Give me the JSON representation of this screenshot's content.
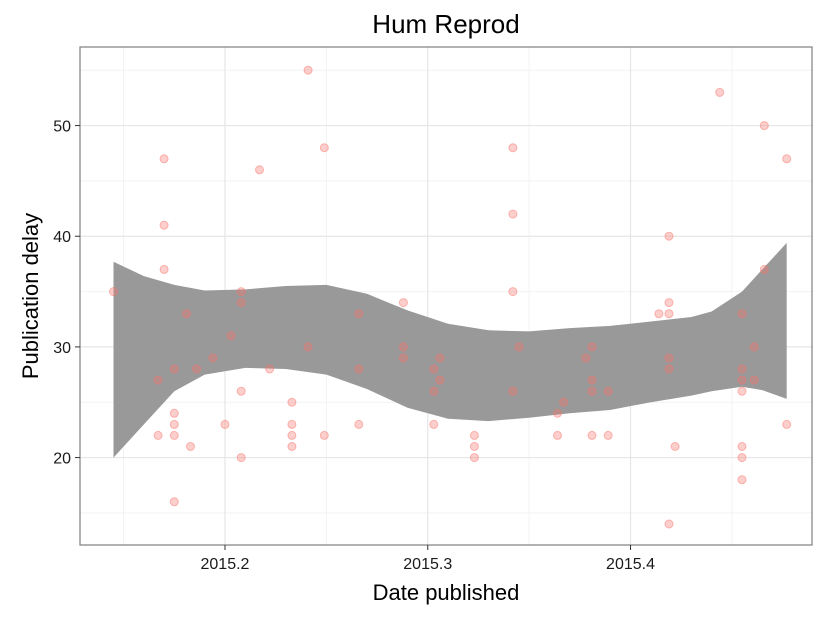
{
  "chart_data": {
    "type": "scatter",
    "title": "Hum Reprod",
    "xlabel": "Date published",
    "ylabel": "Publication delay",
    "xlim": [
      2015.1285,
      2015.4895
    ],
    "ylim": [
      12.1,
      57.1
    ],
    "x_ticks": [
      2015.2,
      2015.3,
      2015.4
    ],
    "x_tick_labels": [
      "2015.2",
      "2015.3",
      "2015.4"
    ],
    "y_ticks": [
      20,
      30,
      40,
      50
    ],
    "y_tick_labels": [
      "20",
      "30",
      "40",
      "50"
    ],
    "grid": true,
    "point_color": "#F8766D",
    "band_color": "#999999",
    "points": [
      [
        2015.145,
        35
      ],
      [
        2015.167,
        27
      ],
      [
        2015.167,
        22
      ],
      [
        2015.17,
        47
      ],
      [
        2015.17,
        41
      ],
      [
        2015.17,
        37
      ],
      [
        2015.175,
        28
      ],
      [
        2015.175,
        24
      ],
      [
        2015.175,
        23
      ],
      [
        2015.175,
        22
      ],
      [
        2015.175,
        16
      ],
      [
        2015.181,
        33
      ],
      [
        2015.183,
        21
      ],
      [
        2015.186,
        28
      ],
      [
        2015.194,
        29
      ],
      [
        2015.2,
        23
      ],
      [
        2015.203,
        31
      ],
      [
        2015.208,
        35
      ],
      [
        2015.208,
        34
      ],
      [
        2015.208,
        26
      ],
      [
        2015.208,
        20
      ],
      [
        2015.217,
        46
      ],
      [
        2015.222,
        28
      ],
      [
        2015.233,
        25
      ],
      [
        2015.233,
        23
      ],
      [
        2015.233,
        22
      ],
      [
        2015.233,
        21
      ],
      [
        2015.241,
        55
      ],
      [
        2015.241,
        30
      ],
      [
        2015.249,
        48
      ],
      [
        2015.249,
        22
      ],
      [
        2015.266,
        33
      ],
      [
        2015.266,
        28
      ],
      [
        2015.266,
        23
      ],
      [
        2015.288,
        34
      ],
      [
        2015.288,
        30
      ],
      [
        2015.288,
        29
      ],
      [
        2015.303,
        28
      ],
      [
        2015.303,
        26
      ],
      [
        2015.303,
        23
      ],
      [
        2015.306,
        29
      ],
      [
        2015.306,
        27
      ],
      [
        2015.323,
        22
      ],
      [
        2015.323,
        21
      ],
      [
        2015.323,
        20
      ],
      [
        2015.342,
        48
      ],
      [
        2015.342,
        42
      ],
      [
        2015.342,
        35
      ],
      [
        2015.342,
        26
      ],
      [
        2015.345,
        30
      ],
      [
        2015.364,
        24
      ],
      [
        2015.364,
        22
      ],
      [
        2015.367,
        25
      ],
      [
        2015.378,
        29
      ],
      [
        2015.381,
        30
      ],
      [
        2015.381,
        27
      ],
      [
        2015.381,
        26
      ],
      [
        2015.381,
        22
      ],
      [
        2015.389,
        26
      ],
      [
        2015.389,
        22
      ],
      [
        2015.414,
        33
      ],
      [
        2015.419,
        40
      ],
      [
        2015.419,
        34
      ],
      [
        2015.419,
        33
      ],
      [
        2015.419,
        29
      ],
      [
        2015.419,
        28
      ],
      [
        2015.419,
        14
      ],
      [
        2015.422,
        21
      ],
      [
        2015.444,
        53
      ],
      [
        2015.455,
        33
      ],
      [
        2015.455,
        28
      ],
      [
        2015.455,
        27
      ],
      [
        2015.455,
        26
      ],
      [
        2015.455,
        21
      ],
      [
        2015.455,
        20
      ],
      [
        2015.455,
        18
      ],
      [
        2015.461,
        30
      ],
      [
        2015.461,
        27
      ],
      [
        2015.466,
        50
      ],
      [
        2015.466,
        37
      ],
      [
        2015.477,
        47
      ],
      [
        2015.477,
        23
      ]
    ],
    "smooth_band": [
      {
        "x": 2015.145,
        "lo": 20.0,
        "hi": 37.7
      },
      {
        "x": 2015.16,
        "lo": 23.0,
        "hi": 36.4
      },
      {
        "x": 2015.175,
        "lo": 26.0,
        "hi": 35.6
      },
      {
        "x": 2015.19,
        "lo": 27.5,
        "hi": 35.1
      },
      {
        "x": 2015.21,
        "lo": 28.1,
        "hi": 35.2
      },
      {
        "x": 2015.23,
        "lo": 28.0,
        "hi": 35.5
      },
      {
        "x": 2015.25,
        "lo": 27.5,
        "hi": 35.6
      },
      {
        "x": 2015.27,
        "lo": 26.2,
        "hi": 34.8
      },
      {
        "x": 2015.29,
        "lo": 24.5,
        "hi": 33.3
      },
      {
        "x": 2015.31,
        "lo": 23.5,
        "hi": 32.1
      },
      {
        "x": 2015.33,
        "lo": 23.3,
        "hi": 31.5
      },
      {
        "x": 2015.35,
        "lo": 23.6,
        "hi": 31.4
      },
      {
        "x": 2015.37,
        "lo": 24.0,
        "hi": 31.7
      },
      {
        "x": 2015.39,
        "lo": 24.3,
        "hi": 31.9
      },
      {
        "x": 2015.41,
        "lo": 25.0,
        "hi": 32.3
      },
      {
        "x": 2015.43,
        "lo": 25.6,
        "hi": 32.7
      },
      {
        "x": 2015.44,
        "lo": 26.0,
        "hi": 33.2
      },
      {
        "x": 2015.455,
        "lo": 26.4,
        "hi": 35.0
      },
      {
        "x": 2015.465,
        "lo": 26.1,
        "hi": 37.0
      },
      {
        "x": 2015.477,
        "lo": 25.3,
        "hi": 39.4
      }
    ]
  }
}
